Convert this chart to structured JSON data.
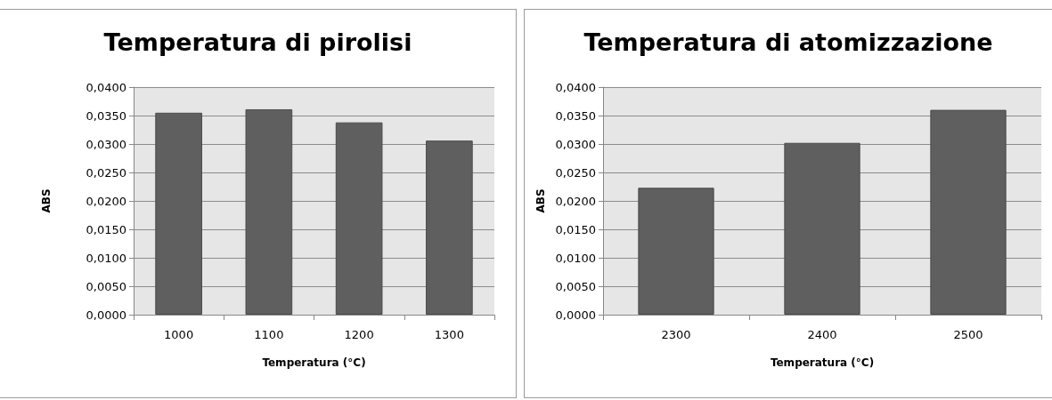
{
  "chart_data": [
    {
      "type": "bar",
      "title": "Temperatura di pirolisi",
      "xlabel": "Temperatura (°C)",
      "ylabel": "ABS",
      "categories": [
        "1000",
        "1100",
        "1200",
        "1300"
      ],
      "values": [
        0.0355,
        0.0361,
        0.0338,
        0.0306
      ],
      "color": "#5f5f5f",
      "ylim": [
        0,
        0.04
      ],
      "yticks": [
        {
          "value": 0,
          "label": "0,0000"
        },
        {
          "value": 0.005,
          "label": "0,0050"
        },
        {
          "value": 0.01,
          "label": "0,0100"
        },
        {
          "value": 0.015,
          "label": "0,0150"
        },
        {
          "value": 0.02,
          "label": "0,0200"
        },
        {
          "value": 0.025,
          "label": "0,0250"
        },
        {
          "value": 0.03,
          "label": "0,0300"
        },
        {
          "value": 0.035,
          "label": "0,0350"
        },
        {
          "value": 0.04,
          "label": "0,0400"
        }
      ],
      "grid": "y"
    },
    {
      "type": "bar",
      "title": "Temperatura di atomizzazione",
      "xlabel": "Temperatura (°C)",
      "ylabel": "ABS",
      "categories": [
        "2300",
        "2400",
        "2500"
      ],
      "values": [
        0.0223,
        0.0302,
        0.036
      ],
      "color": "#5f5f5f",
      "ylim": [
        0,
        0.04
      ],
      "yticks": [
        {
          "value": 0,
          "label": "0,0000"
        },
        {
          "value": 0.005,
          "label": "0,0050"
        },
        {
          "value": 0.01,
          "label": "0,0100"
        },
        {
          "value": 0.015,
          "label": "0,0150"
        },
        {
          "value": 0.02,
          "label": "0,0200"
        },
        {
          "value": 0.025,
          "label": "0,0250"
        },
        {
          "value": 0.03,
          "label": "0,0300"
        },
        {
          "value": 0.035,
          "label": "0,0350"
        },
        {
          "value": 0.04,
          "label": "0,0400"
        }
      ],
      "grid": "y"
    }
  ]
}
